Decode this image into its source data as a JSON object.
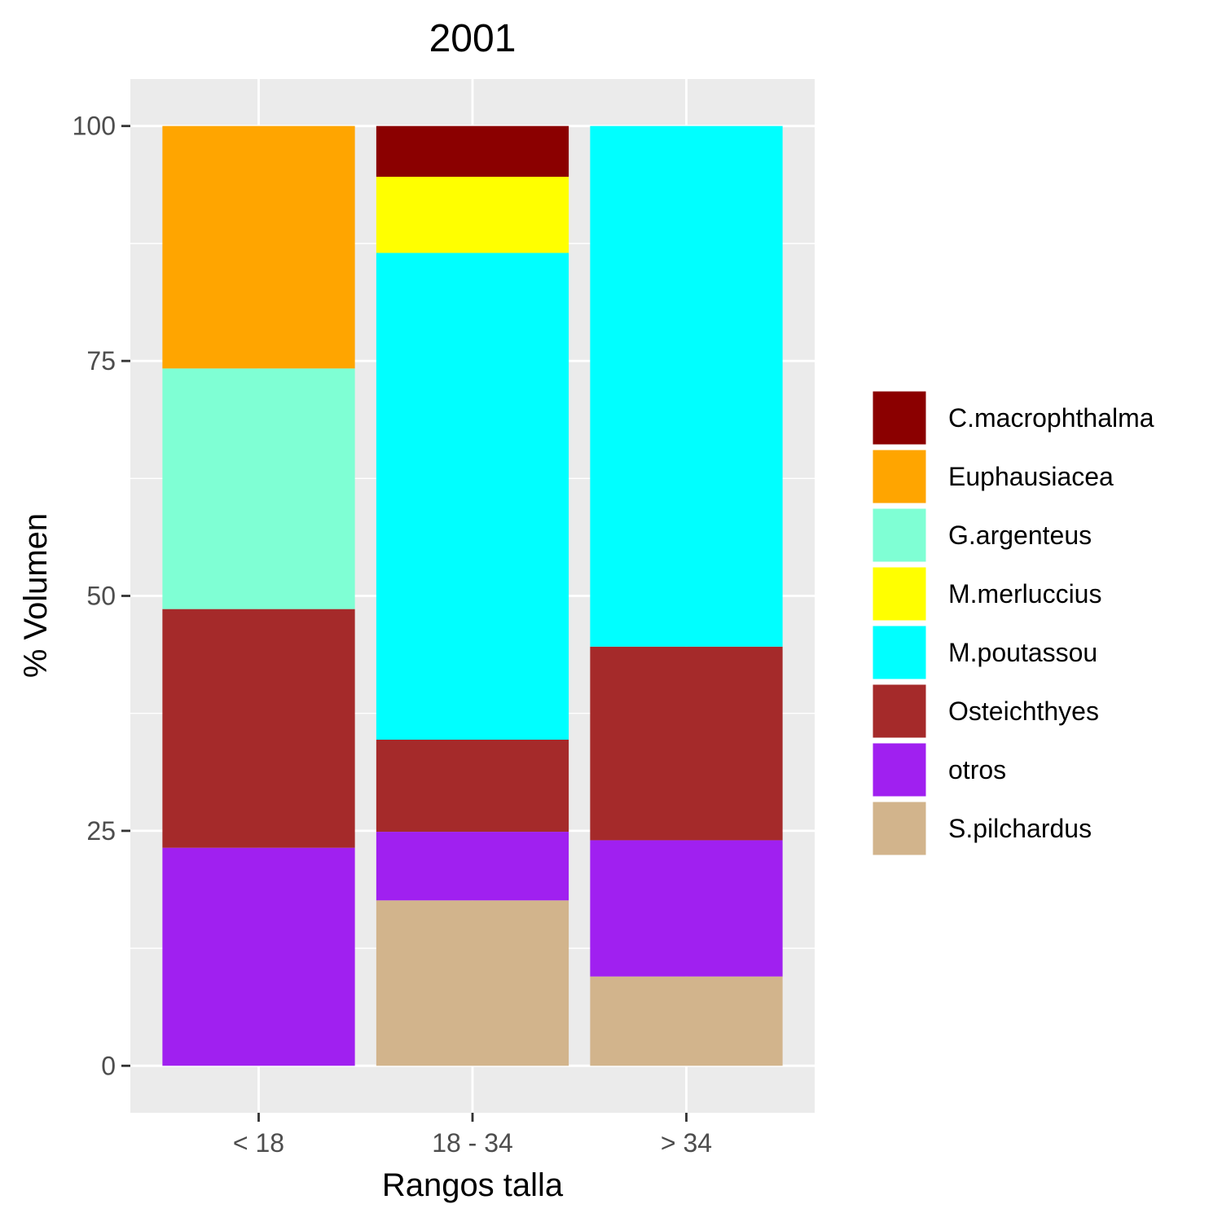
{
  "chart_data": {
    "type": "bar",
    "stacked": true,
    "title": "2001",
    "xlabel": "Rangos talla",
    "ylabel": "% Volumen",
    "categories": [
      "< 18",
      "18 - 34",
      "> 34"
    ],
    "ylim": [
      -5,
      105
    ],
    "yticks": [
      0,
      25,
      50,
      75,
      100
    ],
    "grid": true,
    "legend_position": "right",
    "series": [
      {
        "name": "C.macrophthalma",
        "color": "#8B0000",
        "values": [
          0,
          5.4,
          0
        ]
      },
      {
        "name": "Euphausiacea",
        "color": "#FFA500",
        "values": [
          25.8,
          0,
          0
        ]
      },
      {
        "name": "G.argenteus",
        "color": "#7FFFD4",
        "values": [
          25.6,
          0,
          0
        ]
      },
      {
        "name": "M.merluccius",
        "color": "#FFFF00",
        "values": [
          0,
          8.1,
          0
        ]
      },
      {
        "name": "M.poutassou",
        "color": "#00FFFF",
        "values": [
          0,
          51.8,
          55.4
        ]
      },
      {
        "name": "Osteichthyes",
        "color": "#A52A2A",
        "values": [
          25.4,
          9.8,
          20.6
        ]
      },
      {
        "name": "otros",
        "color": "#A020F0",
        "values": [
          23.2,
          7.3,
          14.5
        ]
      },
      {
        "name": "S.pilchardus",
        "color": "#D2B48C",
        "values": [
          0,
          17.6,
          9.5
        ]
      }
    ]
  }
}
